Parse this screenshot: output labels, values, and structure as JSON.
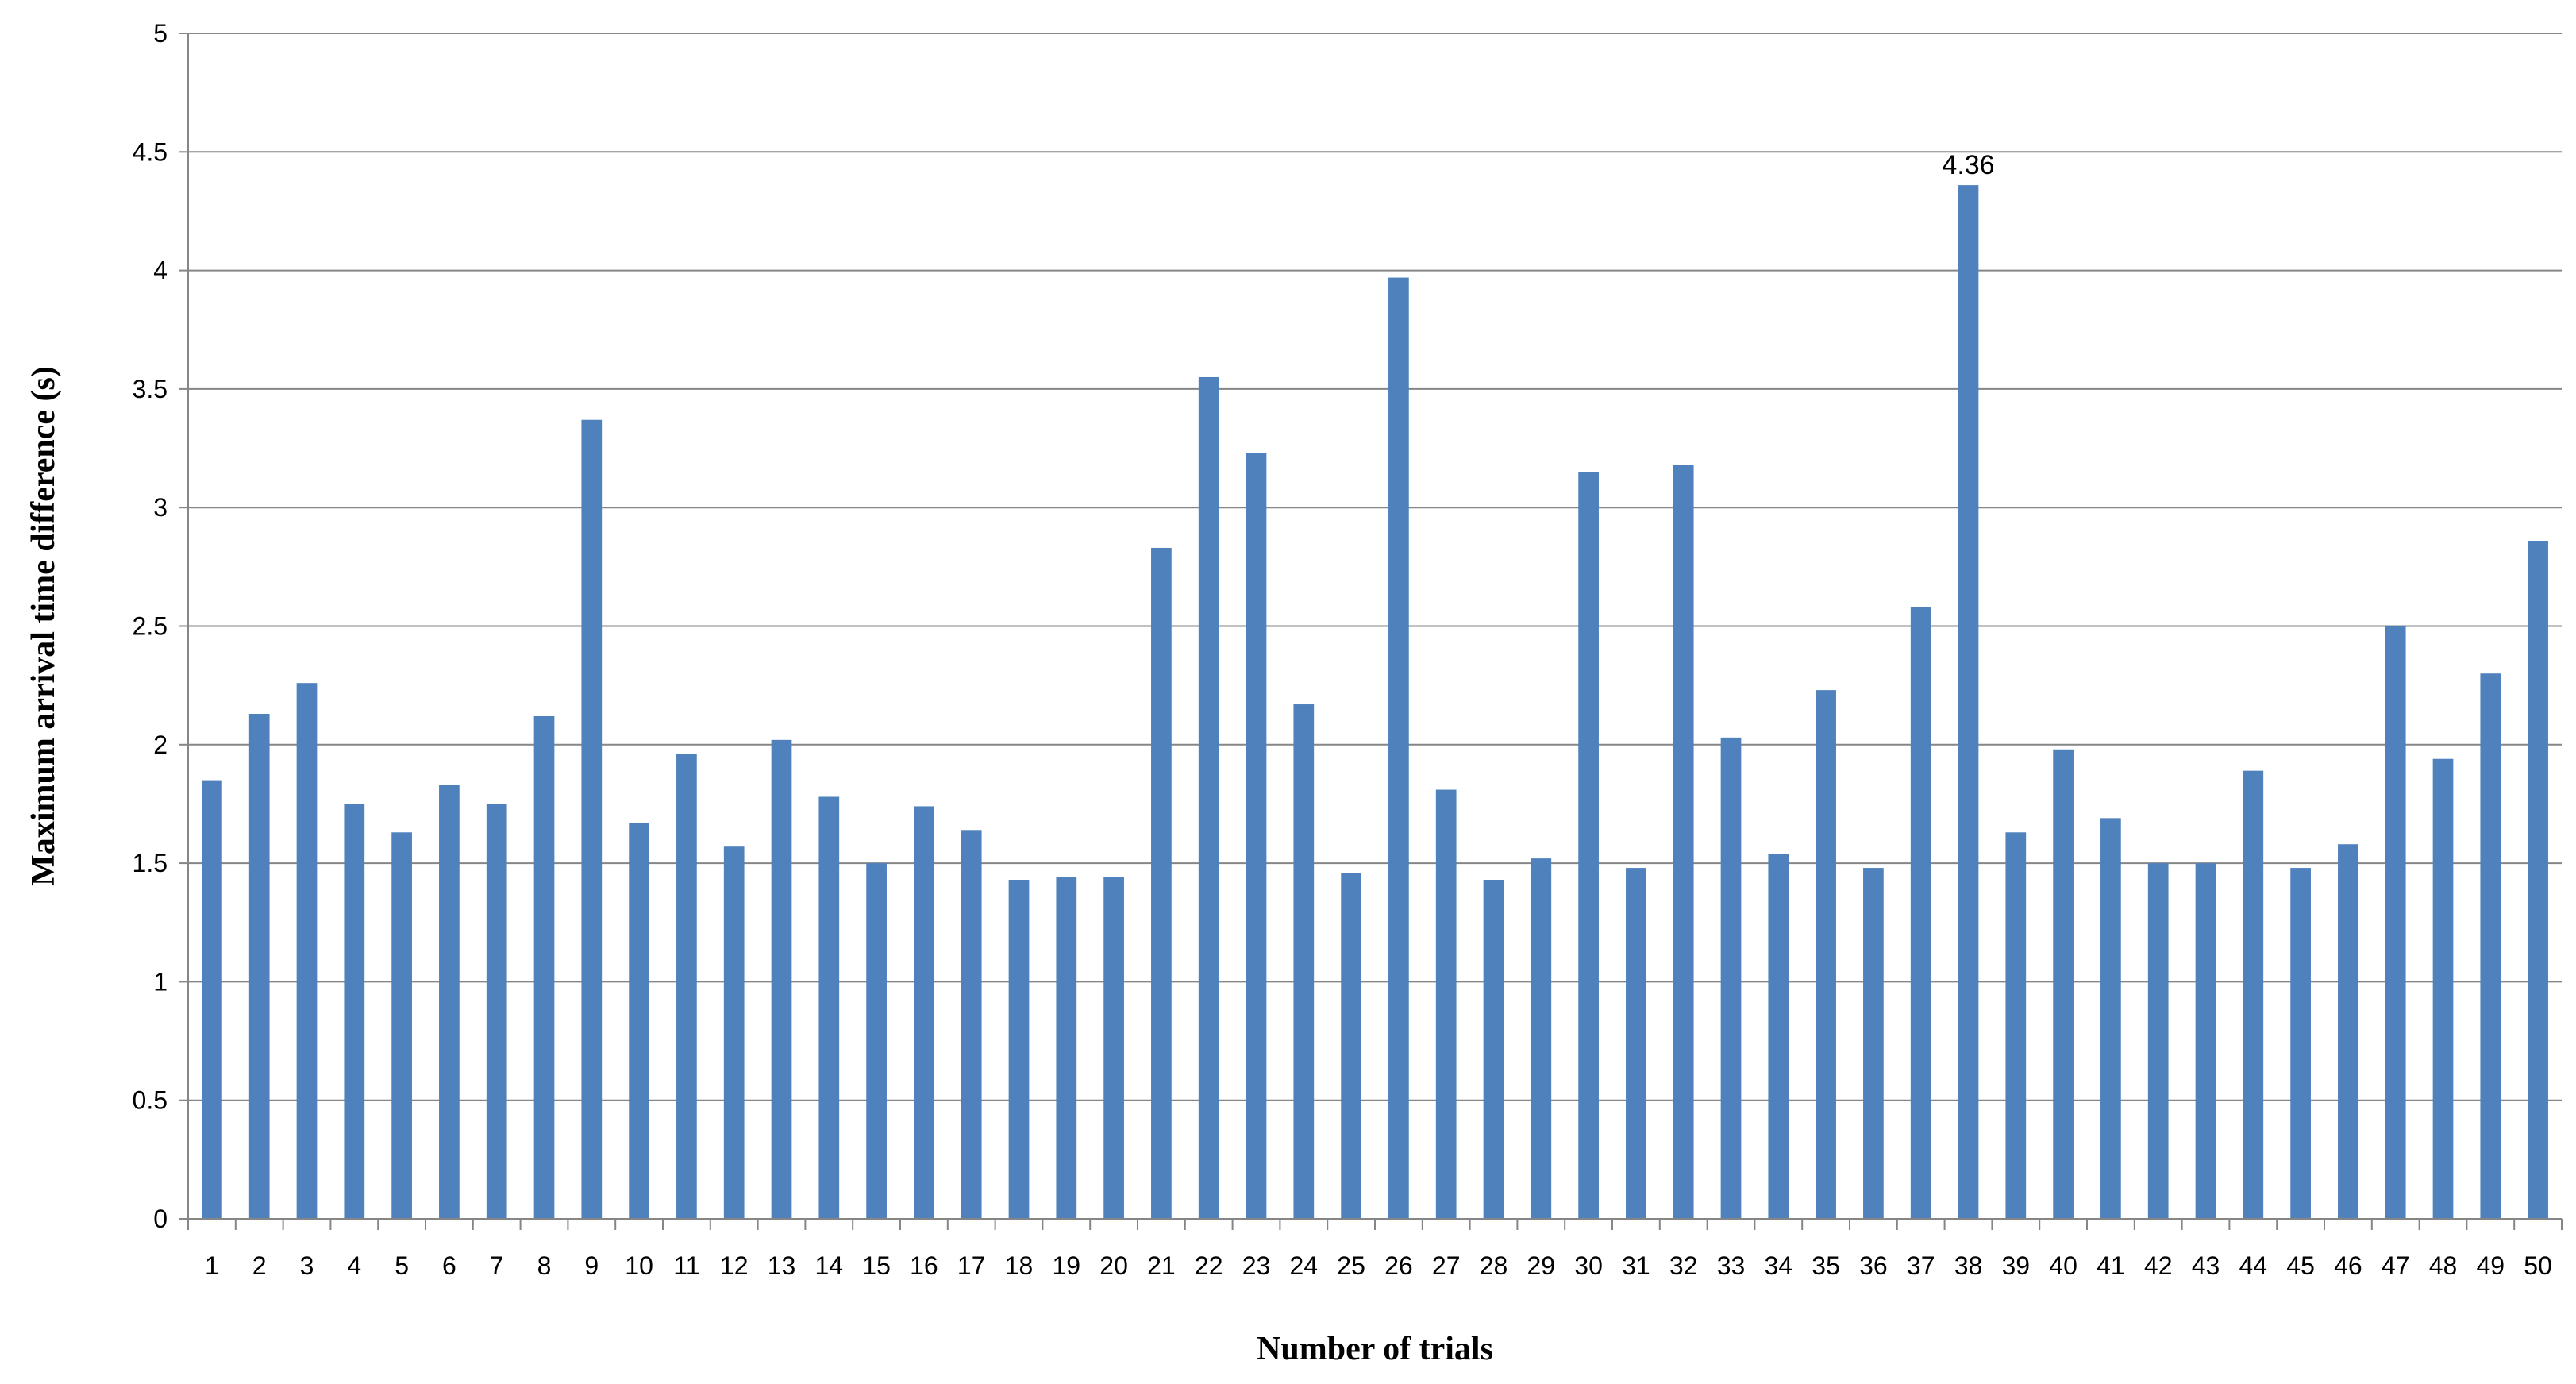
{
  "chart_data": {
    "type": "bar",
    "title": "",
    "xlabel": "Number of trials",
    "ylabel": "Maximum arrival time difference (s)",
    "ylim": [
      0,
      5
    ],
    "yticks": [
      "0",
      "0.5",
      "1",
      "1.5",
      "2",
      "2.5",
      "3",
      "3.5",
      "4",
      "4.5",
      "5"
    ],
    "categories": [
      "1",
      "2",
      "3",
      "4",
      "5",
      "6",
      "7",
      "8",
      "9",
      "10",
      "11",
      "12",
      "13",
      "14",
      "15",
      "16",
      "17",
      "18",
      "19",
      "20",
      "21",
      "22",
      "23",
      "24",
      "25",
      "26",
      "27",
      "28",
      "29",
      "30",
      "31",
      "32",
      "33",
      "34",
      "35",
      "36",
      "37",
      "38",
      "39",
      "40",
      "41",
      "42",
      "43",
      "44",
      "45",
      "46",
      "47",
      "48",
      "49",
      "50"
    ],
    "values": [
      1.85,
      2.13,
      2.26,
      1.75,
      1.63,
      1.83,
      1.75,
      2.12,
      3.37,
      1.67,
      1.96,
      1.57,
      2.02,
      1.78,
      1.5,
      1.74,
      1.64,
      1.43,
      1.44,
      1.44,
      2.83,
      3.55,
      3.23,
      2.17,
      1.46,
      3.97,
      1.81,
      1.43,
      1.52,
      3.15,
      1.48,
      3.18,
      2.03,
      1.54,
      2.23,
      1.48,
      2.58,
      4.36,
      1.63,
      1.98,
      1.69,
      1.5,
      1.5,
      1.89,
      1.48,
      1.58,
      2.5,
      1.94,
      2.3,
      2.86
    ],
    "data_labels": [
      {
        "category": "38",
        "text": "4.36"
      }
    ],
    "bar_color": "#4f81bd",
    "grid": true,
    "legend": "none"
  }
}
